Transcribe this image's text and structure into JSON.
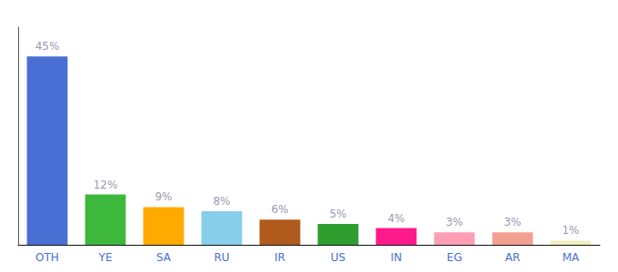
{
  "chart_data": {
    "type": "bar",
    "categories": [
      "OTH",
      "YE",
      "SA",
      "RU",
      "IR",
      "US",
      "IN",
      "EG",
      "AR",
      "MA"
    ],
    "values": [
      45,
      12,
      9,
      8,
      6,
      5,
      4,
      3,
      3,
      1
    ],
    "value_labels": [
      "45%",
      "12%",
      "9%",
      "8%",
      "6%",
      "5%",
      "4%",
      "3%",
      "3%",
      "1%"
    ],
    "colors": [
      "#4a6fd4",
      "#3db83d",
      "#ffaa00",
      "#87ceeb",
      "#b05a1e",
      "#2e9e2e",
      "#ff1a8c",
      "#ff9eb5",
      "#f4a090",
      "#f0edc0"
    ],
    "ylim": [
      0,
      52
    ],
    "grid": false,
    "data_labels": true,
    "tick_labels": "x"
  }
}
